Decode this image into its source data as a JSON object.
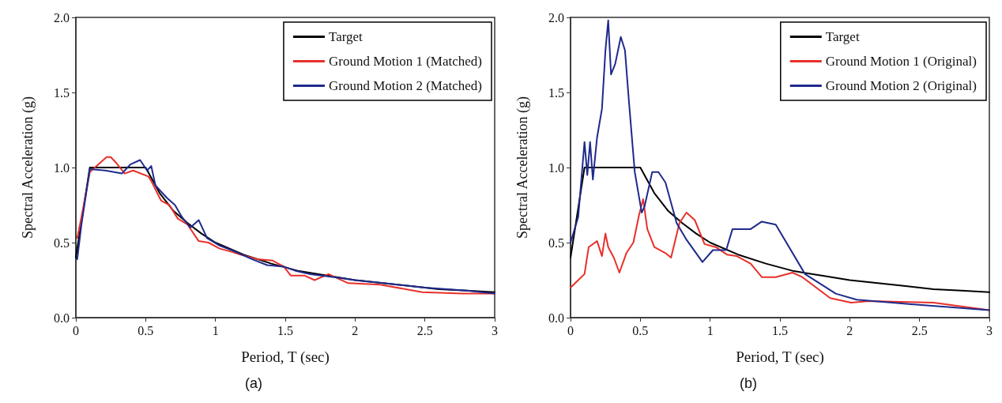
{
  "chart_data": [
    {
      "type": "line",
      "xlabel": "Period, T (sec)",
      "ylabel": "Spectral Acceleration (g)",
      "annotations": [
        "(a)"
      ],
      "xlim": [
        0,
        3
      ],
      "xticks": [
        0,
        0.5,
        1,
        1.5,
        2,
        2.5,
        3
      ],
      "ylim": [
        0,
        2
      ],
      "yticks": [
        {
          "value": 0,
          "label": "0.0"
        },
        {
          "value": 0.5,
          "label": "0.5"
        },
        {
          "value": 1,
          "label": "1.0"
        },
        {
          "value": 1.5,
          "label": "1.5"
        },
        {
          "value": 2,
          "label": "2.0"
        }
      ],
      "grid": false,
      "legend": "top right",
      "marker": "none",
      "line_style": "solid",
      "series": [
        {
          "name": "Target",
          "color": "#000000",
          "x": [
            0,
            0.1,
            0.5,
            0.6,
            0.7,
            0.8,
            0.9,
            1,
            1.2,
            1.4,
            1.6,
            1.8,
            2,
            2.2,
            2.4,
            2.6,
            2.8,
            3
          ],
          "values": [
            0.4,
            1.0,
            1.0,
            0.83,
            0.71,
            0.63,
            0.56,
            0.5,
            0.42,
            0.36,
            0.31,
            0.28,
            0.25,
            0.23,
            0.21,
            0.19,
            0.18,
            0.17
          ]
        },
        {
          "name": "Ground Motion 1 (Matched)",
          "color": "#e8302a",
          "x": [
            0.01,
            0.04,
            0.1,
            0.22,
            0.25,
            0.29,
            0.35,
            0.41,
            0.52,
            0.54,
            0.61,
            0.67,
            0.73,
            0.8,
            0.88,
            0.95,
            1.03,
            1.11,
            1.18,
            1.3,
            1.41,
            1.49,
            1.54,
            1.64,
            1.71,
            1.81,
            1.95,
            2.18,
            2.48,
            2.77,
            3
          ],
          "values": [
            0.53,
            0.67,
            0.97,
            1.07,
            1.07,
            1.03,
            0.96,
            0.98,
            0.94,
            0.91,
            0.78,
            0.75,
            0.66,
            0.62,
            0.51,
            0.5,
            0.46,
            0.44,
            0.42,
            0.39,
            0.38,
            0.34,
            0.28,
            0.28,
            0.25,
            0.29,
            0.23,
            0.22,
            0.17,
            0.16,
            0.16
          ]
        },
        {
          "name": "Ground Motion 2 (Matched)",
          "color": "#1f2a8c",
          "x": [
            0.01,
            0.04,
            0.1,
            0.21,
            0.33,
            0.39,
            0.46,
            0.51,
            0.54,
            0.57,
            0.65,
            0.71,
            0.76,
            0.82,
            0.88,
            0.94,
            1.03,
            1.14,
            1.26,
            1.37,
            1.49,
            1.58,
            1.68,
            1.85,
            2.0,
            2.2,
            2.5,
            2.8,
            3
          ],
          "values": [
            0.39,
            0.62,
            0.99,
            0.98,
            0.96,
            1.02,
            1.05,
            0.98,
            1.01,
            0.88,
            0.8,
            0.75,
            0.67,
            0.6,
            0.65,
            0.53,
            0.48,
            0.44,
            0.39,
            0.35,
            0.34,
            0.31,
            0.29,
            0.27,
            0.25,
            0.23,
            0.2,
            0.18,
            0.16
          ]
        }
      ]
    },
    {
      "type": "line",
      "xlabel": "Period, T (sec)",
      "ylabel": "Spectral Acceleration (g)",
      "annotations": [
        "(b)"
      ],
      "xlim": [
        0,
        3
      ],
      "xticks": [
        0,
        0.5,
        1,
        1.5,
        2,
        2.5,
        3
      ],
      "ylim": [
        0,
        2
      ],
      "yticks": [
        {
          "value": 0,
          "label": "0.0"
        },
        {
          "value": 0.5,
          "label": "0.5"
        },
        {
          "value": 1,
          "label": "1.0"
        },
        {
          "value": 1.5,
          "label": "1.5"
        },
        {
          "value": 2,
          "label": "2.0"
        }
      ],
      "grid": false,
      "legend": "top right",
      "marker": "none",
      "line_style": "solid",
      "series": [
        {
          "name": "Target",
          "color": "#000000",
          "x": [
            0,
            0.1,
            0.5,
            0.6,
            0.7,
            0.8,
            0.9,
            1,
            1.2,
            1.4,
            1.6,
            1.8,
            2,
            2.2,
            2.4,
            2.6,
            2.8,
            3
          ],
          "values": [
            0.4,
            1.0,
            1.0,
            0.83,
            0.71,
            0.63,
            0.56,
            0.5,
            0.42,
            0.36,
            0.31,
            0.28,
            0.25,
            0.23,
            0.21,
            0.19,
            0.18,
            0.17
          ]
        },
        {
          "name": "Ground Motion 1 (Original)",
          "color": "#e8302a",
          "x": [
            0,
            0.055,
            0.1,
            0.13,
            0.19,
            0.225,
            0.25,
            0.27,
            0.31,
            0.35,
            0.4,
            0.45,
            0.49,
            0.52,
            0.55,
            0.6,
            0.68,
            0.72,
            0.78,
            0.83,
            0.89,
            0.96,
            1.04,
            1.12,
            1.19,
            1.29,
            1.37,
            1.47,
            1.59,
            1.66,
            1.86,
            2.01,
            2.14,
            2.6,
            3
          ],
          "values": [
            0.2,
            0.25,
            0.29,
            0.47,
            0.51,
            0.41,
            0.56,
            0.47,
            0.4,
            0.3,
            0.43,
            0.5,
            0.68,
            0.79,
            0.59,
            0.47,
            0.43,
            0.4,
            0.63,
            0.7,
            0.65,
            0.49,
            0.47,
            0.42,
            0.41,
            0.36,
            0.27,
            0.27,
            0.3,
            0.27,
            0.13,
            0.1,
            0.11,
            0.1,
            0.05
          ]
        },
        {
          "name": "Ground Motion 2 (Original)",
          "color": "#1f2a8c",
          "x": [
            0,
            0.055,
            0.1,
            0.12,
            0.14,
            0.16,
            0.19,
            0.225,
            0.25,
            0.27,
            0.29,
            0.32,
            0.36,
            0.39,
            0.42,
            0.46,
            0.51,
            0.53,
            0.585,
            0.63,
            0.68,
            0.76,
            0.83,
            0.945,
            1.02,
            1.115,
            1.16,
            1.29,
            1.37,
            1.47,
            1.68,
            1.9,
            2.05,
            2.44,
            3
          ],
          "values": [
            0.5,
            0.67,
            1.17,
            0.95,
            1.17,
            0.92,
            1.2,
            1.39,
            1.78,
            1.98,
            1.62,
            1.69,
            1.87,
            1.78,
            1.42,
            0.97,
            0.7,
            0.74,
            0.97,
            0.97,
            0.9,
            0.63,
            0.52,
            0.37,
            0.45,
            0.45,
            0.59,
            0.59,
            0.64,
            0.62,
            0.29,
            0.16,
            0.12,
            0.09,
            0.05
          ]
        }
      ]
    }
  ]
}
